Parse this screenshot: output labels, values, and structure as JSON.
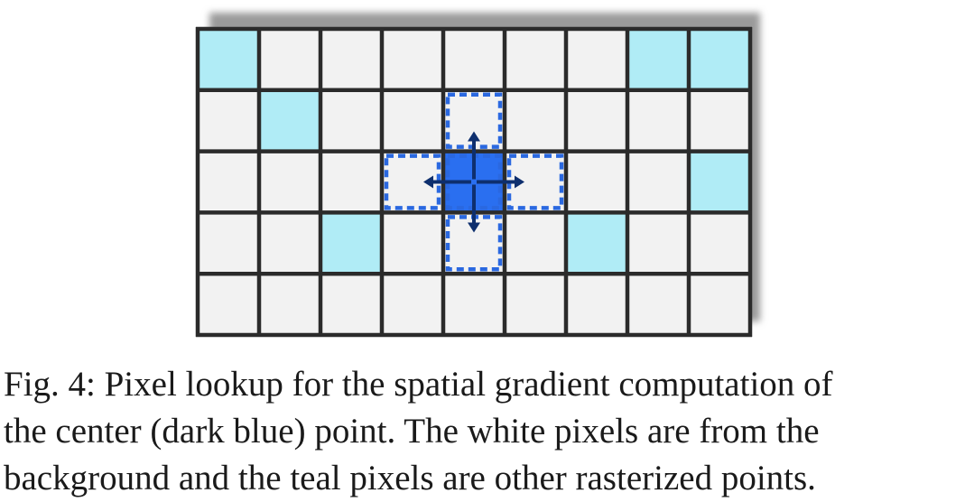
{
  "figure": {
    "grid": {
      "columns": 9,
      "rows": 5,
      "pixel_types": [
        "background",
        "rasterized-point",
        "center-point",
        "lookup-neighbor"
      ],
      "teal_cells": [
        [
          0,
          0
        ],
        [
          0,
          7
        ],
        [
          0,
          8
        ],
        [
          1,
          1
        ],
        [
          2,
          8
        ],
        [
          3,
          2
        ],
        [
          3,
          6
        ]
      ],
      "center_cell": [
        2,
        4
      ],
      "lookup_cells": [
        [
          1,
          4
        ],
        [
          3,
          4
        ],
        [
          2,
          3
        ],
        [
          2,
          5
        ]
      ],
      "arrows": [
        "up",
        "down",
        "left",
        "right"
      ]
    },
    "colors": {
      "background_pixel": "#f2f2f2",
      "teal_pixel": "#b0ecf6",
      "center_pixel": "#2a6ff0",
      "dashed_outline": "#2a68e0",
      "arrow": "#0e2f6e",
      "grid_line": "#2b2b2b",
      "shadow": "#9a9a9a"
    }
  },
  "caption": {
    "lines": [
      "Fig. 4: Pixel lookup for the spatial gradient computation of",
      "the center (dark blue) point. The white pixels are from the",
      "background and the teal pixels are other rasterized points."
    ]
  }
}
